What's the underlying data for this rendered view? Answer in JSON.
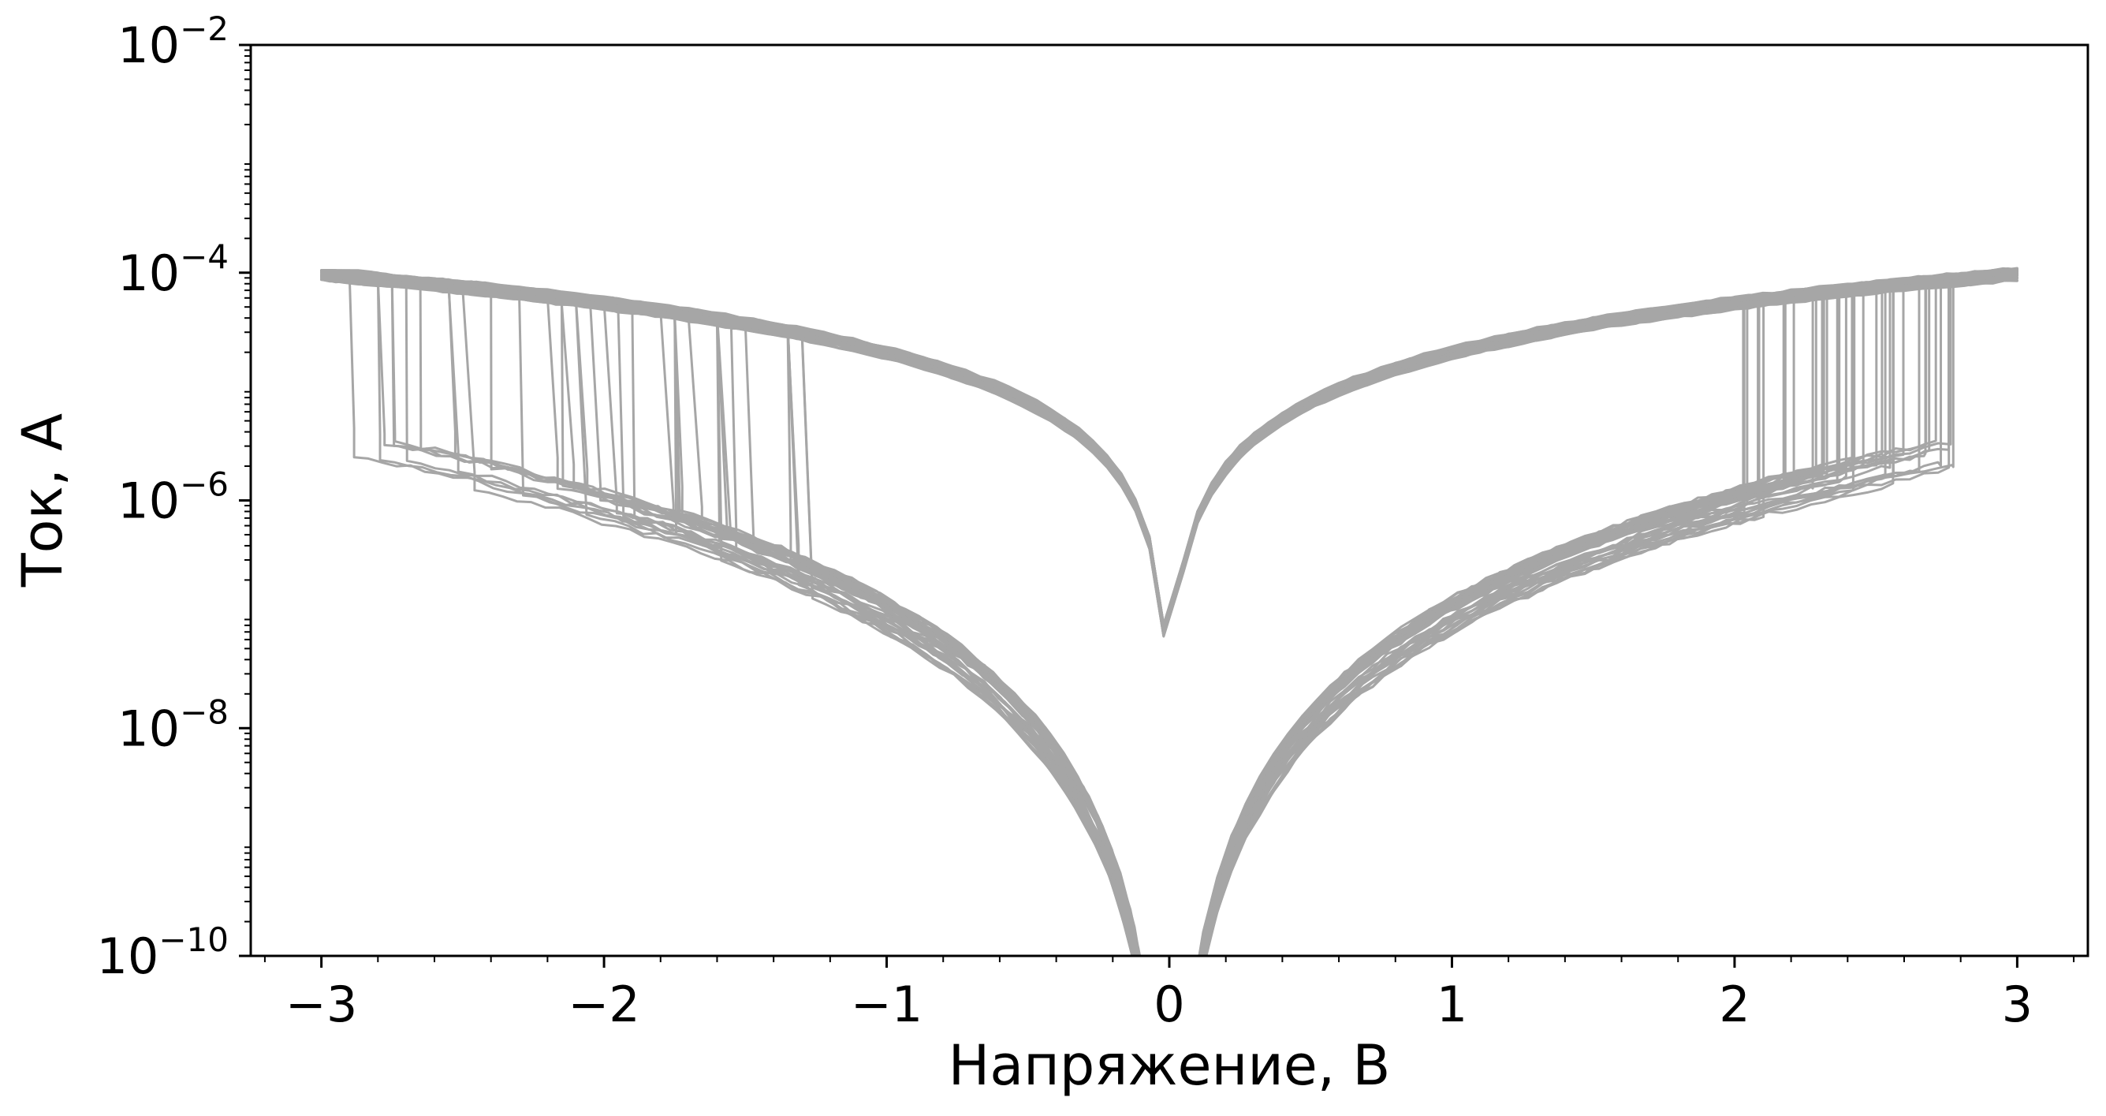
{
  "chart_data": {
    "type": "line",
    "title": "",
    "xlabel": "Напряжение, В",
    "ylabel": "Ток, А",
    "xlim": [
      -3.25,
      3.25
    ],
    "ylim": [
      1e-10,
      0.01
    ],
    "yscale": "log",
    "grid": false,
    "legend": "none",
    "line_color": "#a6a6a6",
    "x_ticks": [
      {
        "value": -3,
        "label": "−3"
      },
      {
        "value": -2,
        "label": "−2"
      },
      {
        "value": -1,
        "label": "−1"
      },
      {
        "value": 0,
        "label": "0"
      },
      {
        "value": 1,
        "label": "1"
      },
      {
        "value": 2,
        "label": "2"
      },
      {
        "value": 3,
        "label": "3"
      }
    ],
    "y_ticks": [
      {
        "value": 1e-10,
        "base": "10",
        "exp": "−10"
      },
      {
        "value": 1e-08,
        "base": "10",
        "exp": "−8"
      },
      {
        "value": 1e-06,
        "base": "10",
        "exp": "−6"
      },
      {
        "value": 0.0001,
        "base": "10",
        "exp": "−4"
      },
      {
        "value": 0.01,
        "base": "10",
        "exp": "−2"
      }
    ],
    "cycle_count": 40,
    "series_summary": {
      "high_state_current_at_minus_3V": 0.0001,
      "high_state_current_at_plus_3V": 0.0001,
      "low_state_current_at_minus_3V": 5e-06,
      "low_state_current_at_plus_3V": 5e-06,
      "set_voltage_range": [
        2.0,
        2.8
      ],
      "reset_voltage_range": [
        -2.95,
        -1.25
      ]
    }
  }
}
